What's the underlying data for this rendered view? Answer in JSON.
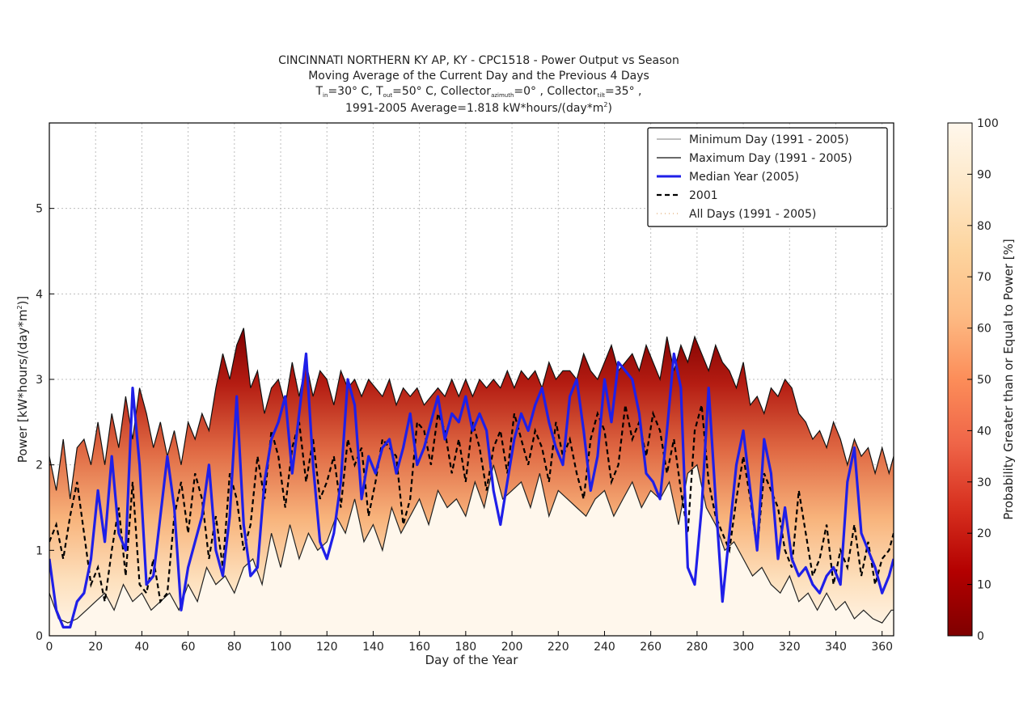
{
  "chart_data": {
    "type": "line",
    "title_lines": [
      "CINCINNATI NORTHERN KY AP, KY - CPC1518 - Power Output vs Season",
      "Moving Average of the Current Day and the Previous 4 Days",
      "T_in=30°C, T_out=50°C, Collector_azimuth=0°, Collector_tilt=35°,",
      "1991-2005 Average=1.818 kW*hours/(day*m²)"
    ],
    "title_rich": {
      "line3": {
        "t": "T",
        "in": "in",
        "eq30": "=30° C, ",
        "out": "out",
        "eq50": "=50° C, Collector",
        "azimuth": "azimuth",
        "eq0": "=0° , Collector",
        "tilt": "tilt",
        "eq35": "=35° ,"
      },
      "line4": {
        "prefix": "1991-2005 Average=1.818 kW*hours/(day*m",
        "sup": "2",
        "suffix": ")"
      }
    },
    "xlabel": "Day of the Year",
    "ylabel": {
      "prefix": "Power [kW*hours/(day*m",
      "sup": "2",
      "suffix": ")]"
    },
    "xlim": [
      0,
      365
    ],
    "ylim": [
      0,
      6
    ],
    "x_ticks": [
      0,
      20,
      40,
      60,
      80,
      100,
      120,
      140,
      160,
      180,
      200,
      220,
      240,
      260,
      280,
      300,
      320,
      340,
      360
    ],
    "y_ticks": [
      0,
      1,
      2,
      3,
      4,
      5
    ],
    "grid": true,
    "legend_position": "top-right",
    "legend": [
      {
        "label": "Minimum Day (1991 - 2005)",
        "style": "thin-gray"
      },
      {
        "label": "Maximum Day (1991 - 2005)",
        "style": "thin-black"
      },
      {
        "label": "Median Year (2005)",
        "style": "thick-blue"
      },
      {
        "label": "2001",
        "style": "dashed-black"
      },
      {
        "label": "All Days (1991 - 2005)",
        "style": "dotted-light"
      }
    ],
    "colorbar": {
      "label": "Probability Greater than or Equal to Power [%]",
      "ticks": [
        0,
        10,
        20,
        30,
        40,
        50,
        60,
        70,
        80,
        90,
        100
      ],
      "colors": [
        "#7f0000",
        "#b30000",
        "#d7301f",
        "#ef6548",
        "#fc8d59",
        "#fdbb84",
        "#fdd49e",
        "#fee8c8",
        "#fff7ec"
      ]
    },
    "colors": {
      "median": "#1f1fe8",
      "max": "#111111",
      "min": "#333333",
      "series_2001": "#000000",
      "background": "#fff7ec"
    },
    "series": [
      {
        "name": "Maximum Day (1991 - 2005)",
        "x": [
          0,
          3,
          6,
          9,
          12,
          15,
          18,
          21,
          24,
          27,
          30,
          33,
          36,
          39,
          42,
          45,
          48,
          51,
          54,
          57,
          60,
          63,
          66,
          69,
          72,
          75,
          78,
          81,
          84,
          87,
          90,
          93,
          96,
          99,
          102,
          105,
          108,
          111,
          114,
          117,
          120,
          123,
          126,
          129,
          132,
          135,
          138,
          141,
          144,
          147,
          150,
          153,
          156,
          159,
          162,
          165,
          168,
          171,
          174,
          177,
          180,
          183,
          186,
          189,
          192,
          195,
          198,
          201,
          204,
          207,
          210,
          213,
          216,
          219,
          222,
          225,
          228,
          231,
          234,
          237,
          240,
          243,
          246,
          249,
          252,
          255,
          258,
          261,
          264,
          267,
          270,
          273,
          276,
          279,
          282,
          285,
          288,
          291,
          294,
          297,
          300,
          303,
          306,
          309,
          312,
          315,
          318,
          321,
          324,
          327,
          330,
          333,
          336,
          339,
          342,
          345,
          348,
          351,
          354,
          357,
          360,
          363,
          365
        ],
        "y": [
          2.1,
          1.7,
          2.3,
          1.6,
          2.2,
          2.3,
          2.0,
          2.5,
          2.0,
          2.6,
          2.2,
          2.8,
          2.3,
          2.9,
          2.6,
          2.2,
          2.5,
          2.1,
          2.4,
          2.0,
          2.5,
          2.3,
          2.6,
          2.4,
          2.9,
          3.3,
          3.0,
          3.4,
          3.6,
          2.9,
          3.1,
          2.6,
          2.9,
          3.0,
          2.7,
          3.2,
          2.8,
          3.2,
          2.8,
          3.1,
          3.0,
          2.7,
          3.1,
          2.9,
          3.0,
          2.8,
          3.0,
          2.9,
          2.8,
          3.0,
          2.7,
          2.9,
          2.8,
          2.9,
          2.7,
          2.8,
          2.9,
          2.8,
          3.0,
          2.8,
          3.0,
          2.8,
          3.0,
          2.9,
          3.0,
          2.9,
          3.1,
          2.9,
          3.1,
          3.0,
          3.1,
          2.9,
          3.2,
          3.0,
          3.1,
          3.1,
          3.0,
          3.3,
          3.1,
          3.0,
          3.2,
          3.4,
          3.1,
          3.2,
          3.3,
          3.1,
          3.4,
          3.2,
          3.0,
          3.5,
          3.1,
          3.4,
          3.2,
          3.5,
          3.3,
          3.1,
          3.4,
          3.2,
          3.1,
          2.9,
          3.2,
          2.7,
          2.8,
          2.6,
          2.9,
          2.8,
          3.0,
          2.9,
          2.6,
          2.5,
          2.3,
          2.4,
          2.2,
          2.5,
          2.3,
          2.0,
          2.3,
          2.1,
          2.2,
          1.9,
          2.2,
          1.9,
          2.1
        ]
      },
      {
        "name": "Minimum Day (1991 - 2005)",
        "x": [
          0,
          4,
          8,
          12,
          16,
          20,
          24,
          28,
          32,
          36,
          40,
          44,
          48,
          52,
          56,
          60,
          64,
          68,
          72,
          76,
          80,
          84,
          88,
          92,
          96,
          100,
          104,
          108,
          112,
          116,
          120,
          124,
          128,
          132,
          136,
          140,
          144,
          148,
          152,
          156,
          160,
          164,
          168,
          172,
          176,
          180,
          184,
          188,
          192,
          196,
          200,
          204,
          208,
          212,
          216,
          220,
          224,
          228,
          232,
          236,
          240,
          244,
          248,
          252,
          256,
          260,
          264,
          268,
          272,
          276,
          280,
          284,
          288,
          292,
          296,
          300,
          304,
          308,
          312,
          316,
          320,
          324,
          328,
          332,
          336,
          340,
          344,
          348,
          352,
          356,
          360,
          364,
          365
        ],
        "y": [
          0.5,
          0.2,
          0.15,
          0.2,
          0.3,
          0.4,
          0.5,
          0.3,
          0.6,
          0.4,
          0.5,
          0.3,
          0.4,
          0.5,
          0.3,
          0.6,
          0.4,
          0.8,
          0.6,
          0.7,
          0.5,
          0.8,
          0.9,
          0.6,
          1.2,
          0.8,
          1.3,
          0.9,
          1.2,
          1.0,
          1.1,
          1.4,
          1.2,
          1.6,
          1.1,
          1.3,
          1.0,
          1.5,
          1.2,
          1.4,
          1.6,
          1.3,
          1.7,
          1.5,
          1.6,
          1.4,
          1.8,
          1.5,
          2.0,
          1.6,
          1.7,
          1.8,
          1.5,
          1.9,
          1.4,
          1.7,
          1.6,
          1.5,
          1.4,
          1.6,
          1.7,
          1.4,
          1.6,
          1.8,
          1.5,
          1.7,
          1.6,
          1.8,
          1.3,
          1.9,
          2.0,
          1.5,
          1.3,
          1.0,
          1.1,
          0.9,
          0.7,
          0.8,
          0.6,
          0.5,
          0.7,
          0.4,
          0.5,
          0.3,
          0.5,
          0.3,
          0.4,
          0.2,
          0.3,
          0.2,
          0.15,
          0.3,
          0.3
        ]
      },
      {
        "name": "Median Year (2005)",
        "x": [
          0,
          3,
          6,
          9,
          12,
          15,
          18,
          21,
          24,
          27,
          30,
          33,
          36,
          39,
          42,
          45,
          48,
          51,
          54,
          57,
          60,
          63,
          66,
          69,
          72,
          75,
          78,
          81,
          84,
          87,
          90,
          93,
          96,
          99,
          102,
          105,
          108,
          111,
          114,
          117,
          120,
          123,
          126,
          129,
          132,
          135,
          138,
          141,
          144,
          147,
          150,
          153,
          156,
          159,
          162,
          165,
          168,
          171,
          174,
          177,
          180,
          183,
          186,
          189,
          192,
          195,
          198,
          201,
          204,
          207,
          210,
          213,
          216,
          219,
          222,
          225,
          228,
          231,
          234,
          237,
          240,
          243,
          246,
          249,
          252,
          255,
          258,
          261,
          264,
          267,
          270,
          273,
          276,
          279,
          282,
          285,
          288,
          291,
          294,
          297,
          300,
          303,
          306,
          309,
          312,
          315,
          318,
          321,
          324,
          327,
          330,
          333,
          336,
          339,
          342,
          345,
          348,
          351,
          354,
          357,
          360,
          363,
          365
        ],
        "y": [
          0.9,
          0.3,
          0.1,
          0.1,
          0.4,
          0.5,
          0.9,
          1.7,
          1.1,
          2.1,
          1.2,
          1.0,
          2.9,
          2.0,
          0.6,
          0.7,
          1.4,
          2.1,
          1.5,
          0.3,
          0.8,
          1.1,
          1.4,
          2.0,
          1.0,
          0.7,
          1.4,
          2.8,
          1.3,
          0.7,
          0.8,
          1.8,
          2.3,
          2.5,
          2.8,
          1.9,
          2.6,
          3.3,
          2.0,
          1.1,
          0.9,
          1.2,
          1.8,
          3.0,
          2.7,
          1.6,
          2.1,
          1.9,
          2.2,
          2.3,
          1.9,
          2.2,
          2.6,
          2.0,
          2.2,
          2.5,
          2.8,
          2.3,
          2.6,
          2.5,
          2.8,
          2.4,
          2.6,
          2.4,
          1.7,
          1.3,
          1.8,
          2.3,
          2.6,
          2.4,
          2.7,
          2.9,
          2.5,
          2.2,
          2.0,
          2.8,
          3.0,
          2.4,
          1.7,
          2.1,
          3.0,
          2.5,
          3.2,
          3.1,
          3.0,
          2.6,
          1.9,
          1.8,
          1.6,
          2.4,
          3.3,
          2.9,
          0.8,
          0.6,
          1.5,
          2.9,
          1.6,
          0.4,
          1.2,
          2.0,
          2.4,
          1.7,
          1.0,
          2.3,
          1.9,
          0.9,
          1.5,
          0.9,
          0.7,
          0.8,
          0.6,
          0.5,
          0.7,
          0.8,
          0.6,
          1.8,
          2.2,
          1.2,
          1.0,
          0.8,
          0.5,
          0.7,
          0.9
        ]
      },
      {
        "name": "2001",
        "x": [
          0,
          3,
          6,
          9,
          12,
          15,
          18,
          21,
          24,
          27,
          30,
          33,
          36,
          39,
          42,
          45,
          48,
          51,
          54,
          57,
          60,
          63,
          66,
          69,
          72,
          75,
          78,
          81,
          84,
          87,
          90,
          93,
          96,
          99,
          102,
          105,
          108,
          111,
          114,
          117,
          120,
          123,
          126,
          129,
          132,
          135,
          138,
          141,
          144,
          147,
          150,
          153,
          156,
          159,
          162,
          165,
          168,
          171,
          174,
          177,
          180,
          183,
          186,
          189,
          192,
          195,
          198,
          201,
          204,
          207,
          210,
          213,
          216,
          219,
          222,
          225,
          228,
          231,
          234,
          237,
          240,
          243,
          246,
          249,
          252,
          255,
          258,
          261,
          264,
          267,
          270,
          273,
          276,
          279,
          282,
          285,
          288,
          291,
          294,
          297,
          300,
          303,
          306,
          309,
          312,
          315,
          318,
          321,
          324,
          327,
          330,
          333,
          336,
          339,
          342,
          345,
          348,
          351,
          354,
          357,
          360,
          363,
          365
        ],
        "y": [
          1.1,
          1.3,
          0.9,
          1.4,
          1.8,
          1.2,
          0.6,
          0.8,
          0.4,
          1.0,
          1.5,
          0.7,
          1.8,
          0.6,
          0.5,
          0.9,
          0.4,
          0.5,
          1.4,
          1.8,
          1.2,
          1.9,
          1.6,
          0.9,
          1.4,
          0.8,
          1.9,
          1.6,
          1.0,
          1.3,
          2.1,
          1.6,
          2.4,
          2.1,
          1.5,
          2.2,
          2.5,
          1.8,
          2.3,
          1.6,
          1.8,
          2.1,
          1.5,
          2.3,
          2.0,
          2.2,
          1.4,
          1.8,
          2.3,
          2.2,
          2.1,
          1.3,
          1.6,
          2.5,
          2.4,
          2.0,
          2.6,
          2.4,
          1.9,
          2.3,
          1.8,
          2.5,
          2.2,
          1.7,
          2.2,
          2.4,
          1.9,
          2.6,
          2.3,
          2.0,
          2.4,
          2.2,
          1.8,
          2.5,
          2.1,
          2.3,
          1.9,
          1.6,
          2.3,
          2.6,
          2.4,
          1.8,
          2.0,
          2.7,
          2.3,
          2.5,
          2.1,
          2.6,
          2.4,
          1.9,
          2.3,
          1.7,
          1.2,
          2.4,
          2.7,
          1.8,
          1.4,
          1.2,
          1.0,
          1.6,
          2.1,
          1.6,
          1.0,
          1.9,
          1.7,
          1.5,
          1.0,
          0.8,
          1.7,
          1.2,
          0.7,
          0.9,
          1.3,
          0.6,
          1.0,
          0.8,
          1.3,
          0.7,
          1.1,
          0.6,
          0.9,
          1.0,
          1.2
        ]
      }
    ]
  }
}
